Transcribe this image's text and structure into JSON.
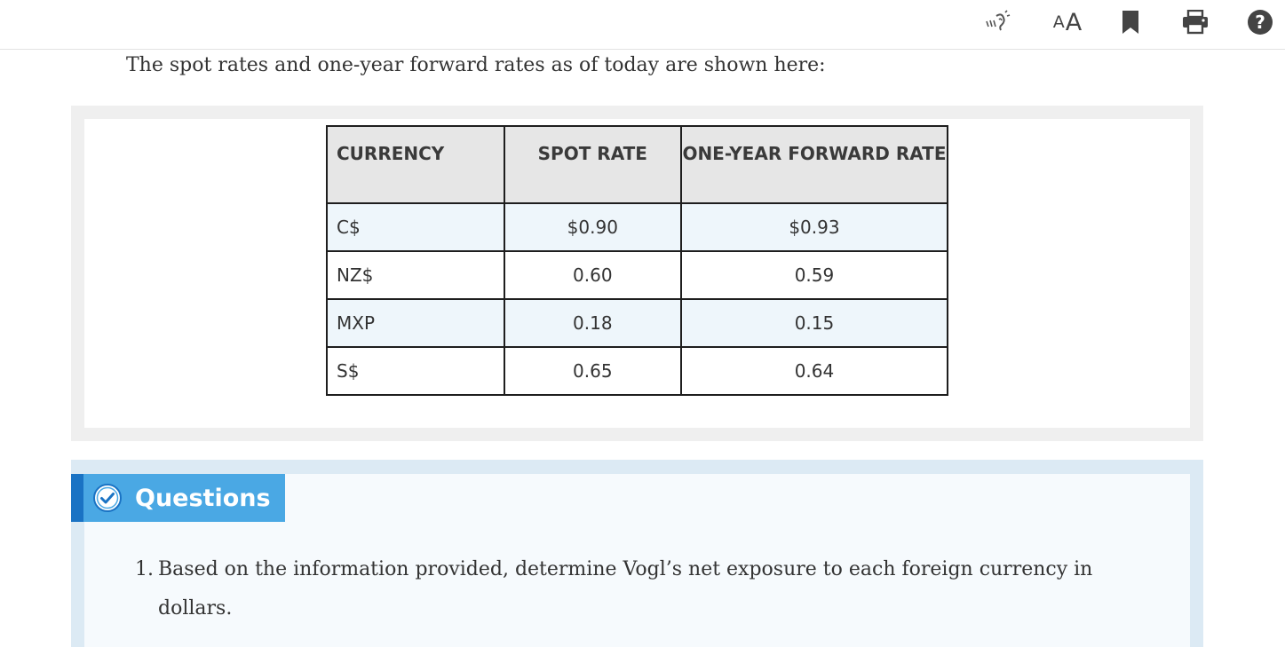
{
  "toolbar": {
    "listen_icon": "listen-speaker-icon",
    "font_small": "A",
    "font_big": "A",
    "bookmark_icon": "bookmark-icon",
    "print_icon": "print-icon",
    "help_icon": "help-circle-icon"
  },
  "intro_text": "The spot rates and one-year forward rates as of today are shown here:",
  "table": {
    "headers": [
      "CURRENCY",
      "SPOT RATE",
      "ONE-YEAR FORWARD RATE"
    ],
    "rows": [
      [
        "C$",
        "$0.90",
        "$0.93"
      ],
      [
        "NZ$",
        "0.60",
        "0.59"
      ],
      [
        "MXP",
        "0.18",
        "0.15"
      ],
      [
        "S$",
        "0.65",
        "0.64"
      ]
    ]
  },
  "questions": {
    "title": "Questions",
    "items": [
      {
        "number": "1.",
        "line1": "Based on the information provided, determine Vogl’s net exposure to each foreign currency in",
        "line2": "dollars."
      }
    ]
  },
  "colors": {
    "question_label": "#4aa8e4",
    "question_stripe": "#1a73c4",
    "alt_row": "#eef6fb",
    "header_row": "#e6e6e6"
  }
}
